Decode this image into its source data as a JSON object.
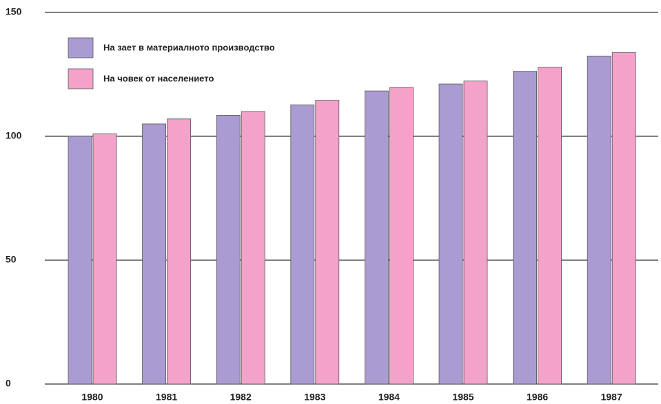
{
  "chart_data": {
    "type": "bar",
    "categories": [
      "1980",
      "1981",
      "1982",
      "1983",
      "1984",
      "1985",
      "1986",
      "1987"
    ],
    "series": [
      {
        "name": "На заeт в материалното производство",
        "color": "#aa9cd2",
        "values": [
          100,
          105,
          108.5,
          112.7,
          118.3,
          121.1,
          126.2,
          132.4
        ]
      },
      {
        "name": "На човек от населението",
        "color": "#f3a2c9",
        "values": [
          101,
          107,
          110,
          114.6,
          119.7,
          122.3,
          127.9,
          133.8
        ]
      }
    ],
    "ylim": [
      0,
      150
    ],
    "yticks": [
      0,
      50,
      100,
      150
    ],
    "grid": true
  }
}
